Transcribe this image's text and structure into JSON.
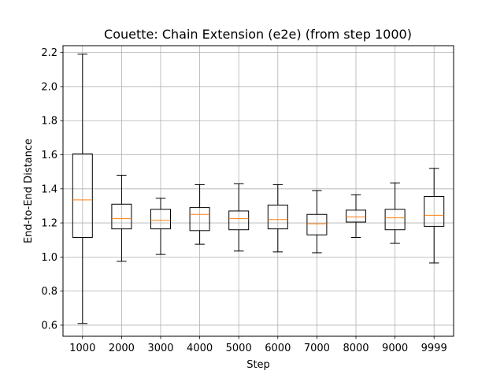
{
  "chart_data": {
    "type": "box",
    "title": "Couette: Chain Extension (e2e) (from step 1000)",
    "xlabel": "Step",
    "ylabel": "End-to-End Distance",
    "categories": [
      "1000",
      "2000",
      "3000",
      "4000",
      "5000",
      "6000",
      "7000",
      "8000",
      "9000",
      "9999"
    ],
    "ylim": [
      0.535,
      2.24
    ],
    "yticks": [
      0.6,
      0.8,
      1.0,
      1.2,
      1.4,
      1.6,
      1.8,
      2.0,
      2.2
    ],
    "ytick_labels": [
      "0.6",
      "0.8",
      "1.0",
      "1.2",
      "1.4",
      "1.6",
      "1.8",
      "2.0",
      "2.2"
    ],
    "grid": true,
    "boxes": [
      {
        "category": "1000",
        "whisker_low": 0.61,
        "q1": 1.115,
        "median": 1.335,
        "q3": 1.605,
        "whisker_high": 2.19
      },
      {
        "category": "2000",
        "whisker_low": 0.975,
        "q1": 1.165,
        "median": 1.225,
        "q3": 1.31,
        "whisker_high": 1.48
      },
      {
        "category": "3000",
        "whisker_low": 1.015,
        "q1": 1.165,
        "median": 1.215,
        "q3": 1.28,
        "whisker_high": 1.345
      },
      {
        "category": "4000",
        "whisker_low": 1.075,
        "q1": 1.155,
        "median": 1.25,
        "q3": 1.29,
        "whisker_high": 1.425
      },
      {
        "category": "5000",
        "whisker_low": 1.035,
        "q1": 1.16,
        "median": 1.225,
        "q3": 1.27,
        "whisker_high": 1.43
      },
      {
        "category": "6000",
        "whisker_low": 1.03,
        "q1": 1.165,
        "median": 1.22,
        "q3": 1.305,
        "whisker_high": 1.425
      },
      {
        "category": "7000",
        "whisker_low": 1.025,
        "q1": 1.13,
        "median": 1.195,
        "q3": 1.25,
        "whisker_high": 1.39
      },
      {
        "category": "8000",
        "whisker_low": 1.115,
        "q1": 1.205,
        "median": 1.235,
        "q3": 1.275,
        "whisker_high": 1.365
      },
      {
        "category": "9000",
        "whisker_low": 1.08,
        "q1": 1.16,
        "median": 1.23,
        "q3": 1.28,
        "whisker_high": 1.435
      },
      {
        "category": "9999",
        "whisker_low": 0.965,
        "q1": 1.18,
        "median": 1.245,
        "q3": 1.355,
        "whisker_high": 1.52
      }
    ],
    "colors": {
      "box": "#000000",
      "median": "#ff7f0e",
      "grid": "#b0b0b0",
      "axes": "#000000"
    }
  }
}
